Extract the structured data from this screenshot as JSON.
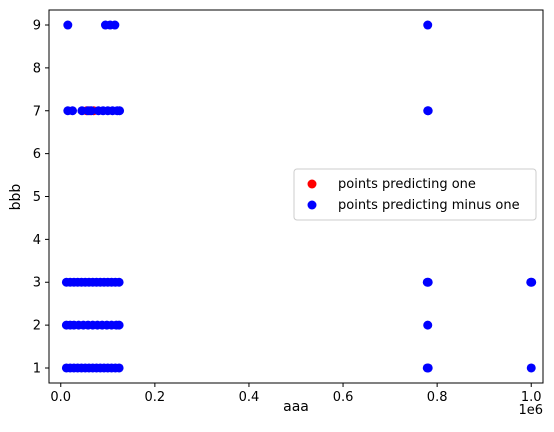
{
  "chart_data": {
    "type": "scatter",
    "xlabel": "aaa",
    "ylabel": "bbb",
    "x_offset_text": "1e6",
    "xlim": [
      -25000,
      1025000
    ],
    "ylim": [
      0.65,
      9.35
    ],
    "x_ticks": [
      0,
      200000,
      400000,
      600000,
      800000,
      1000000
    ],
    "x_tick_labels": [
      "0.0",
      "0.2",
      "0.4",
      "0.6",
      "0.8",
      "1.0"
    ],
    "y_ticks": [
      1,
      2,
      3,
      4,
      5,
      6,
      7,
      8,
      9
    ],
    "y_tick_labels": [
      "1",
      "2",
      "3",
      "4",
      "5",
      "6",
      "7",
      "8",
      "9"
    ],
    "grid": false,
    "legend_position": "center-right",
    "series": [
      {
        "name": "points predicting one",
        "color": "#ff0000",
        "points": [
          [
            55000,
            7
          ],
          [
            62000,
            7
          ],
          [
            70000,
            7
          ]
        ]
      },
      {
        "name": "points predicting minus one",
        "color": "#0000ff",
        "points": [
          [
            15000,
            9
          ],
          [
            95000,
            9
          ],
          [
            105000,
            9
          ],
          [
            115000,
            9
          ],
          [
            780000,
            9
          ],
          [
            15000,
            7
          ],
          [
            25000,
            7
          ],
          [
            45000,
            7
          ],
          [
            58000,
            7
          ],
          [
            65000,
            7
          ],
          [
            80000,
            7
          ],
          [
            90000,
            7
          ],
          [
            100000,
            7
          ],
          [
            110000,
            7
          ],
          [
            120000,
            7
          ],
          [
            125000,
            7
          ],
          [
            780000,
            7
          ],
          [
            781000,
            7
          ],
          [
            12000,
            3
          ],
          [
            20000,
            3
          ],
          [
            28000,
            3
          ],
          [
            36000,
            3
          ],
          [
            44000,
            3
          ],
          [
            52000,
            3
          ],
          [
            60000,
            3
          ],
          [
            68000,
            3
          ],
          [
            76000,
            3
          ],
          [
            84000,
            3
          ],
          [
            92000,
            3
          ],
          [
            100000,
            3
          ],
          [
            108000,
            3
          ],
          [
            116000,
            3
          ],
          [
            124000,
            3
          ],
          [
            779000,
            3
          ],
          [
            781000,
            3
          ],
          [
            999000,
            3
          ],
          [
            1001000,
            3
          ],
          [
            12000,
            2
          ],
          [
            20000,
            2
          ],
          [
            28000,
            2
          ],
          [
            38000,
            2
          ],
          [
            48000,
            2
          ],
          [
            58000,
            2
          ],
          [
            68000,
            2
          ],
          [
            78000,
            2
          ],
          [
            88000,
            2
          ],
          [
            98000,
            2
          ],
          [
            108000,
            2
          ],
          [
            118000,
            2
          ],
          [
            124000,
            2
          ],
          [
            780000,
            2
          ],
          [
            12000,
            1
          ],
          [
            20000,
            1
          ],
          [
            28000,
            1
          ],
          [
            36000,
            1
          ],
          [
            44000,
            1
          ],
          [
            52000,
            1
          ],
          [
            60000,
            1
          ],
          [
            68000,
            1
          ],
          [
            76000,
            1
          ],
          [
            84000,
            1
          ],
          [
            92000,
            1
          ],
          [
            100000,
            1
          ],
          [
            108000,
            1
          ],
          [
            116000,
            1
          ],
          [
            124000,
            1
          ],
          [
            779000,
            1
          ],
          [
            781000,
            1
          ],
          [
            1000000,
            1
          ]
        ]
      }
    ]
  }
}
